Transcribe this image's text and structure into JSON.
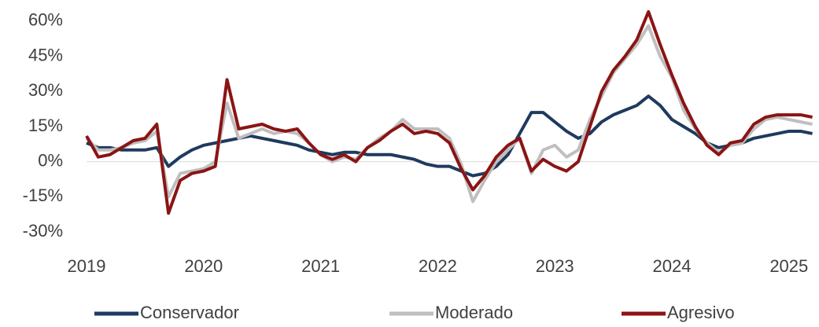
{
  "chart_data": {
    "type": "line",
    "x": [
      2019.0,
      2019.1,
      2019.2,
      2019.3,
      2019.4,
      2019.5,
      2019.6,
      2019.7,
      2019.8,
      2019.9,
      2020.0,
      2020.1,
      2020.2,
      2020.3,
      2020.4,
      2020.5,
      2020.6,
      2020.7,
      2020.8,
      2020.9,
      2021.0,
      2021.1,
      2021.2,
      2021.3,
      2021.4,
      2021.5,
      2021.6,
      2021.7,
      2021.8,
      2021.9,
      2022.0,
      2022.1,
      2022.2,
      2022.3,
      2022.4,
      2022.5,
      2022.6,
      2022.7,
      2022.8,
      2022.9,
      2023.0,
      2023.1,
      2023.2,
      2023.3,
      2023.4,
      2023.5,
      2023.6,
      2023.7,
      2023.8,
      2023.9,
      2024.0,
      2024.1,
      2024.2,
      2024.3,
      2024.4,
      2024.5,
      2024.6,
      2024.7,
      2024.8,
      2024.9,
      2025.0,
      2025.1,
      2025.2
    ],
    "series": [
      {
        "name": "Conservador",
        "color": "#1f3a5f",
        "values": [
          8,
          6,
          6,
          5,
          5,
          5,
          6,
          -2,
          2,
          5,
          7,
          8,
          9,
          10,
          11,
          10,
          9,
          8,
          7,
          5,
          4,
          3,
          4,
          4,
          3,
          3,
          3,
          2,
          1,
          -1,
          -2,
          -2,
          -4,
          -6,
          -5,
          -2,
          3,
          12,
          21,
          21,
          17,
          13,
          10,
          12,
          17,
          20,
          22,
          24,
          28,
          24,
          18,
          15,
          12,
          8,
          6,
          7,
          8,
          10,
          11,
          12,
          13,
          13,
          12
        ]
      },
      {
        "name": "Moderado",
        "color": "#bfbfbf",
        "values": [
          10,
          5,
          5,
          6,
          8,
          9,
          13,
          -15,
          -5,
          -4,
          -3,
          0,
          25,
          10,
          12,
          14,
          12,
          13,
          12,
          8,
          3,
          0,
          2,
          1,
          6,
          10,
          13,
          18,
          14,
          14,
          14,
          10,
          -1,
          -17,
          -8,
          0,
          5,
          10,
          -5,
          5,
          7,
          2,
          5,
          18,
          28,
          38,
          44,
          50,
          58,
          45,
          36,
          22,
          14,
          8,
          4,
          7,
          8,
          14,
          18,
          19,
          18,
          17,
          16
        ]
      },
      {
        "name": "Agresivo",
        "color": "#8b1414",
        "values": [
          11,
          2,
          3,
          6,
          9,
          10,
          16,
          -22,
          -8,
          -5,
          -4,
          -2,
          35,
          14,
          15,
          16,
          14,
          13,
          14,
          8,
          3,
          1,
          3,
          0,
          6,
          9,
          13,
          16,
          12,
          13,
          12,
          8,
          -3,
          -12,
          -6,
          2,
          7,
          10,
          -4,
          1,
          -2,
          -4,
          0,
          15,
          30,
          39,
          45,
          52,
          64,
          50,
          37,
          25,
          15,
          7,
          3,
          8,
          9,
          16,
          19,
          20,
          20,
          20,
          19
        ]
      }
    ],
    "xlim": [
      2019,
      2025.25
    ],
    "xticks": [
      2019,
      2020,
      2021,
      2022,
      2023,
      2024,
      2025
    ],
    "ylim": [
      -35,
      65
    ],
    "yticks": [
      {
        "value": -30,
        "label": "-30%"
      },
      {
        "value": -15,
        "label": "-15%"
      },
      {
        "value": 0,
        "label": "0%"
      },
      {
        "value": 15,
        "label": "15%"
      },
      {
        "value": 30,
        "label": "30%"
      },
      {
        "value": 45,
        "label": "45%"
      },
      {
        "value": 60,
        "label": "60%"
      }
    ],
    "legend": "bottom"
  }
}
